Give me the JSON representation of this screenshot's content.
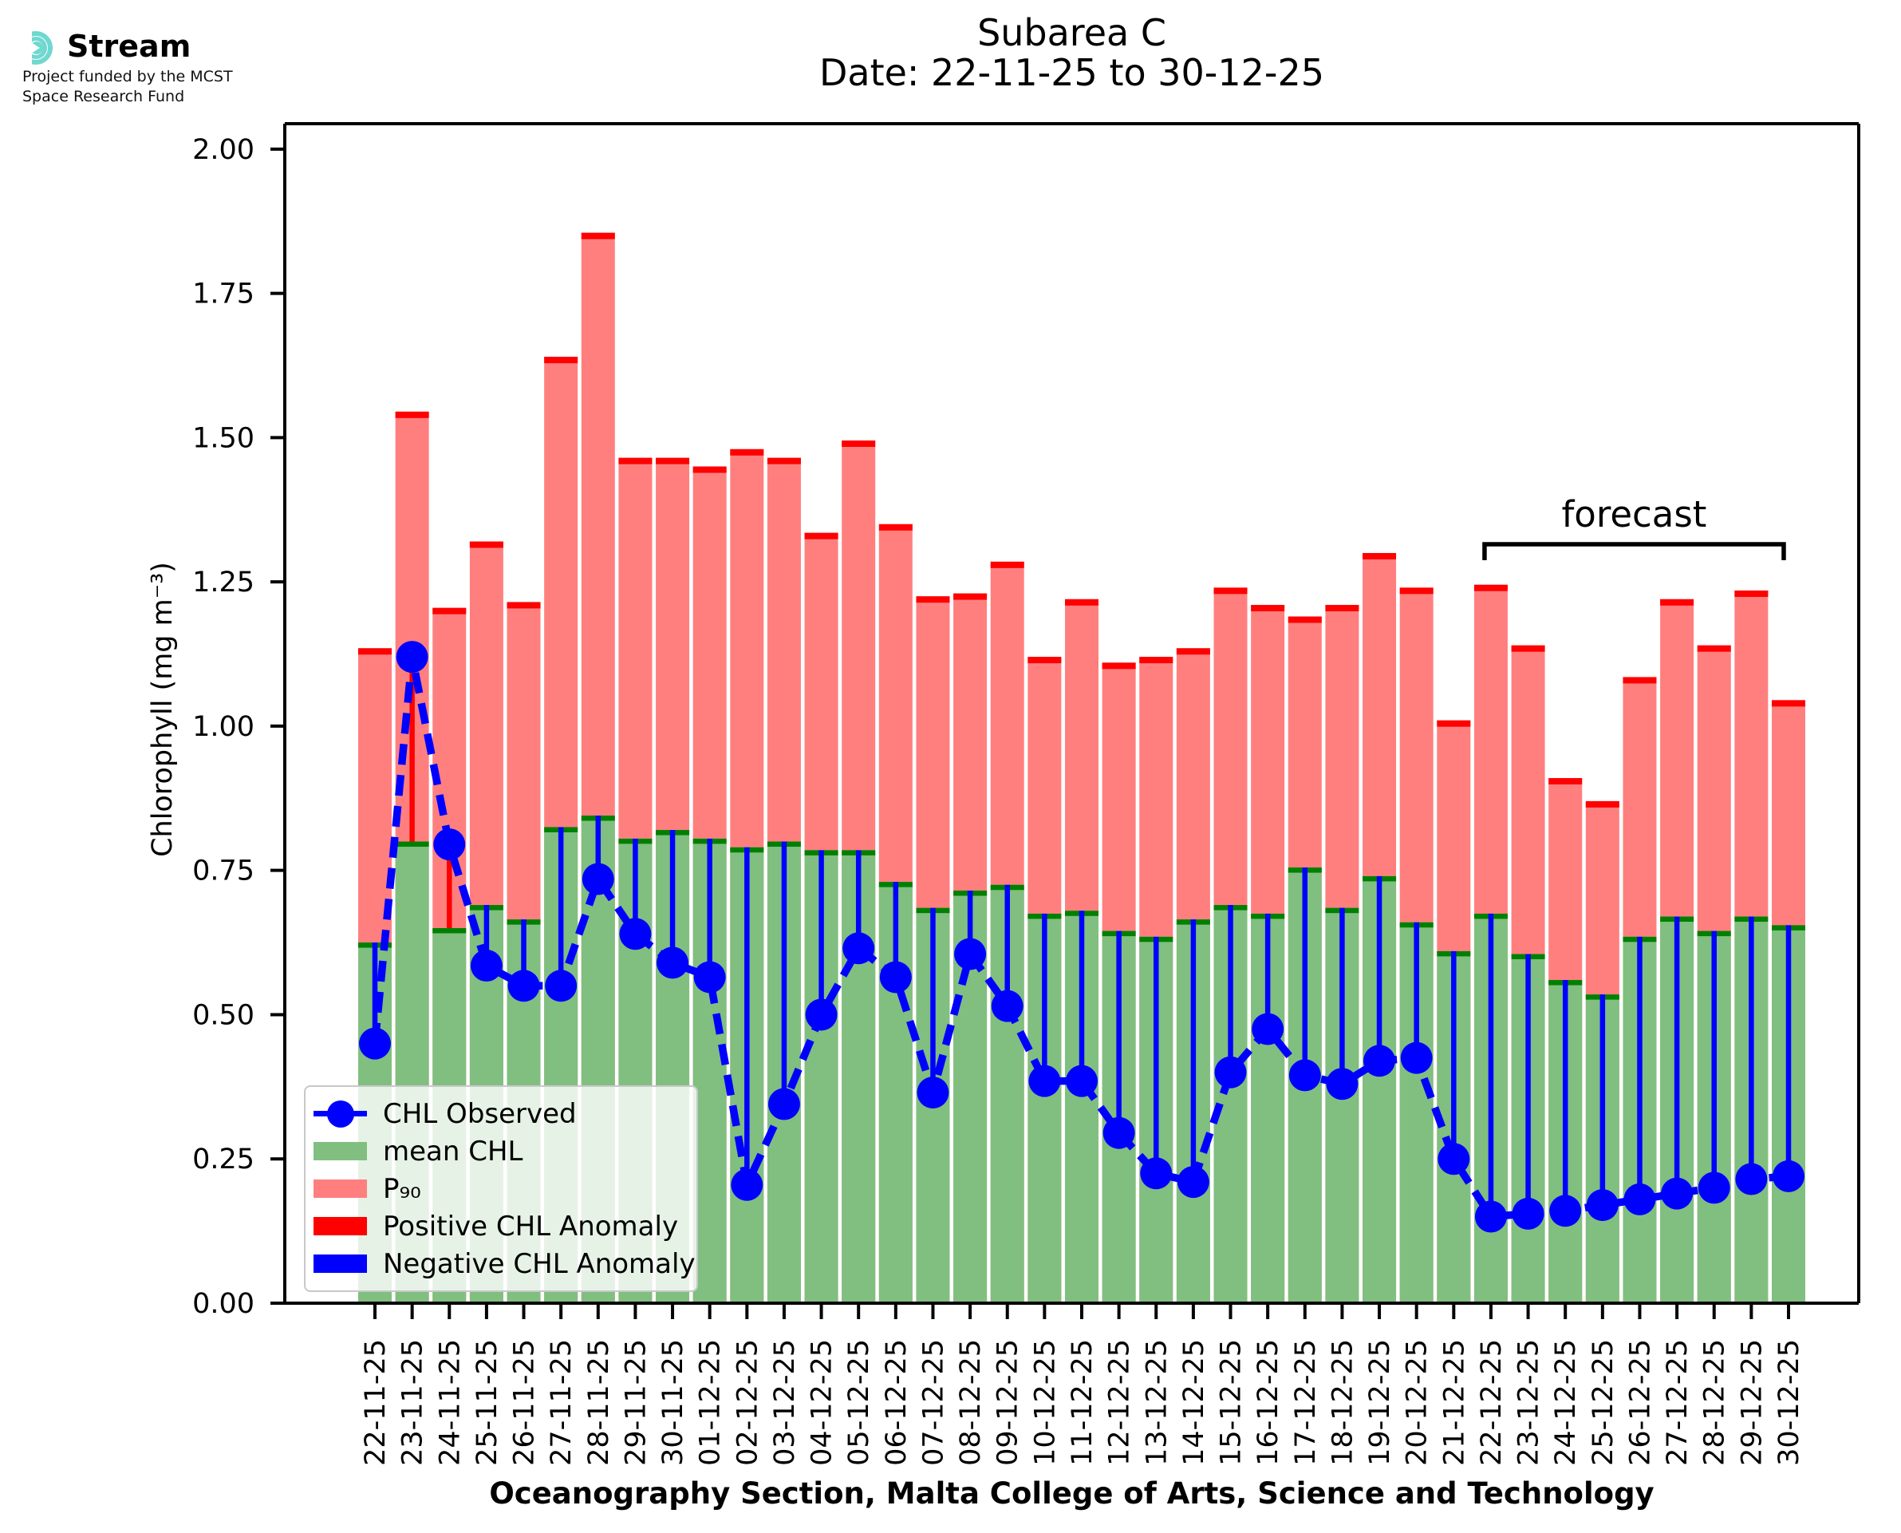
{
  "logo": {
    "brand": "Stream",
    "funding_line1": "Project funded by the MCST",
    "funding_line2": "Space Research Fund",
    "accent_color": "#6fd8cf"
  },
  "title": {
    "line1": "Subarea C",
    "line2": "Date: 22-11-25 to 30-12-25"
  },
  "chart_data": {
    "type": "bar",
    "title": "Subarea C",
    "subtitle": "Date: 22-11-25 to 30-12-25",
    "xlabel": "Oceanography Section, Malta College of Arts, Science and Technology",
    "ylabel": "Chlorophyll (mg m⁻³)",
    "ylim": [
      0.0,
      2.044
    ],
    "yticks": [
      "0.00",
      "0.25",
      "0.50",
      "0.75",
      "1.00",
      "1.25",
      "1.50",
      "1.75",
      "2.00"
    ],
    "grid": false,
    "legend_position": "lower left",
    "categories": [
      "22-11-25",
      "23-11-25",
      "24-11-25",
      "25-11-25",
      "26-11-25",
      "27-11-25",
      "28-11-25",
      "29-11-25",
      "30-11-25",
      "01-12-25",
      "02-12-25",
      "03-12-25",
      "04-12-25",
      "05-12-25",
      "06-12-25",
      "07-12-25",
      "08-12-25",
      "09-12-25",
      "10-12-25",
      "11-12-25",
      "12-12-25",
      "13-12-25",
      "14-12-25",
      "15-12-25",
      "16-12-25",
      "17-12-25",
      "18-12-25",
      "19-12-25",
      "20-12-25",
      "21-12-25",
      "22-12-25",
      "23-12-25",
      "24-12-25",
      "25-12-25",
      "26-12-25",
      "27-12-25",
      "28-12-25",
      "29-12-25",
      "30-12-25"
    ],
    "series": [
      {
        "name": "CHL Observed",
        "kind": "line-marker",
        "color": "#0000ff",
        "values": [
          0.45,
          1.12,
          0.795,
          0.585,
          0.55,
          0.55,
          0.735,
          0.64,
          0.59,
          0.565,
          0.205,
          0.345,
          0.5,
          0.615,
          0.565,
          0.365,
          0.605,
          0.515,
          0.385,
          0.385,
          0.295,
          0.225,
          0.21,
          0.4,
          0.475,
          0.395,
          0.38,
          0.42,
          0.425,
          0.25,
          0.15,
          0.155,
          0.16,
          0.17,
          0.18,
          0.19,
          0.2,
          0.215,
          0.22
        ]
      },
      {
        "name": "mean CHL",
        "kind": "bar",
        "fill": "#80bf80",
        "edge": "#008000",
        "values": [
          0.625,
          0.8,
          0.65,
          0.69,
          0.665,
          0.825,
          0.845,
          0.805,
          0.82,
          0.805,
          0.79,
          0.8,
          0.785,
          0.785,
          0.73,
          0.685,
          0.715,
          0.725,
          0.675,
          0.68,
          0.645,
          0.635,
          0.665,
          0.69,
          0.675,
          0.755,
          0.685,
          0.74,
          0.66,
          0.61,
          0.675,
          0.605,
          0.56,
          0.535,
          0.635,
          0.67,
          0.645,
          0.67,
          0.655
        ]
      },
      {
        "name": "P₉₀",
        "kind": "bar",
        "fill": "#ff7f7f",
        "edge": "#ff0000",
        "values": [
          1.135,
          1.545,
          1.205,
          1.32,
          1.215,
          1.64,
          1.855,
          1.465,
          1.465,
          1.45,
          1.48,
          1.465,
          1.335,
          1.495,
          1.35,
          1.225,
          1.23,
          1.285,
          1.12,
          1.22,
          1.11,
          1.12,
          1.135,
          1.24,
          1.21,
          1.19,
          1.21,
          1.3,
          1.24,
          1.01,
          1.245,
          1.14,
          0.91,
          0.87,
          1.085,
          1.22,
          1.14,
          1.235,
          1.045
        ]
      },
      {
        "name": "Positive CHL Anomaly",
        "kind": "patch",
        "color": "#ff0000"
      },
      {
        "name": "Negative CHL Anomaly",
        "kind": "patch",
        "color": "#0000ff"
      }
    ],
    "annotation": {
      "label": "forecast",
      "start_category": "22-12-25",
      "end_category": "30-12-25"
    }
  }
}
